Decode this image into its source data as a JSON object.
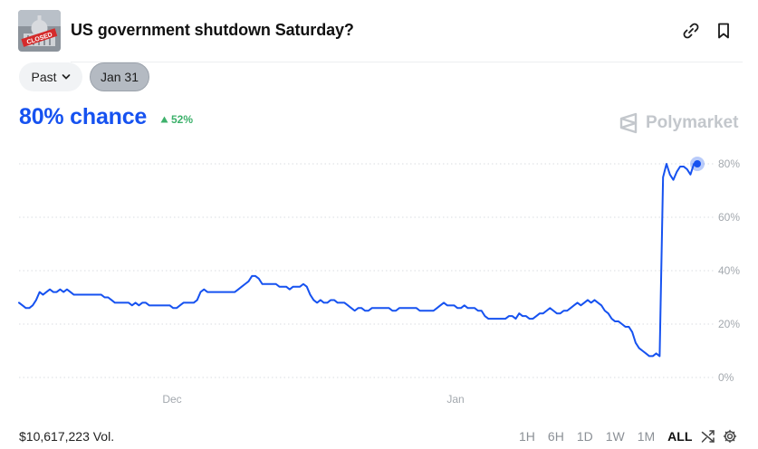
{
  "header": {
    "title": "US government shutdown Saturday?",
    "thumb_badge": "CLOSED"
  },
  "filters": {
    "past_label": "Past",
    "date_label": "Jan 31"
  },
  "headline": {
    "chance": "80% chance",
    "delta": "52%"
  },
  "brand": {
    "name": "Polymarket"
  },
  "footer": {
    "volume": "$10,617,223 Vol.",
    "ranges": [
      "1H",
      "6H",
      "1D",
      "1W",
      "1M",
      "ALL"
    ],
    "active_range": "ALL"
  },
  "colors": {
    "line": "#1652f0",
    "grid": "#d9dde1",
    "up": "#3db16b"
  },
  "chart_data": {
    "type": "line",
    "title": "",
    "xlabel": "",
    "ylabel": "",
    "x_ticks": [
      "Dec",
      "Jan"
    ],
    "y_ticks": [
      "0%",
      "20%",
      "40%",
      "60%",
      "80%"
    ],
    "ylim": [
      0,
      80
    ],
    "grid": true,
    "series": [
      {
        "values": [
          28,
          27,
          26,
          26,
          27,
          29,
          32,
          31,
          32,
          33,
          32,
          32,
          33,
          32,
          33,
          32,
          31,
          31,
          31,
          31,
          31,
          31,
          31,
          31,
          31,
          30,
          30,
          29,
          28,
          28,
          28,
          28,
          28,
          27,
          28,
          27,
          28,
          28,
          27,
          27,
          27,
          27,
          27,
          27,
          27,
          26,
          26,
          27,
          28,
          28,
          28,
          28,
          29,
          32,
          33,
          32,
          32,
          32,
          32,
          32,
          32,
          32,
          32,
          32,
          33,
          34,
          35,
          36,
          38,
          38,
          37,
          35,
          35,
          35,
          35,
          35,
          34,
          34,
          34,
          33,
          34,
          34,
          34,
          35,
          34,
          31,
          29,
          28,
          29,
          28,
          28,
          29,
          29,
          28,
          28,
          28,
          27,
          26,
          25,
          26,
          26,
          25,
          25,
          26,
          26,
          26,
          26,
          26,
          26,
          25,
          25,
          26,
          26,
          26,
          26,
          26,
          26,
          25,
          25,
          25,
          25,
          25,
          26,
          27,
          28,
          27,
          27,
          27,
          26,
          26,
          27,
          26,
          26,
          26,
          25,
          25,
          23,
          22,
          22,
          22,
          22,
          22,
          22,
          23,
          23,
          22,
          24,
          23,
          23,
          22,
          22,
          23,
          24,
          24,
          25,
          26,
          25,
          24,
          24,
          25,
          25,
          26,
          27,
          28,
          27,
          28,
          29,
          28,
          29,
          28,
          27,
          25,
          24,
          22,
          21,
          21,
          20,
          19,
          19,
          17,
          13,
          11,
          10,
          9,
          8,
          8,
          9,
          8,
          75,
          80,
          76,
          74,
          77,
          79,
          79,
          78,
          76,
          80,
          80
        ]
      }
    ]
  }
}
